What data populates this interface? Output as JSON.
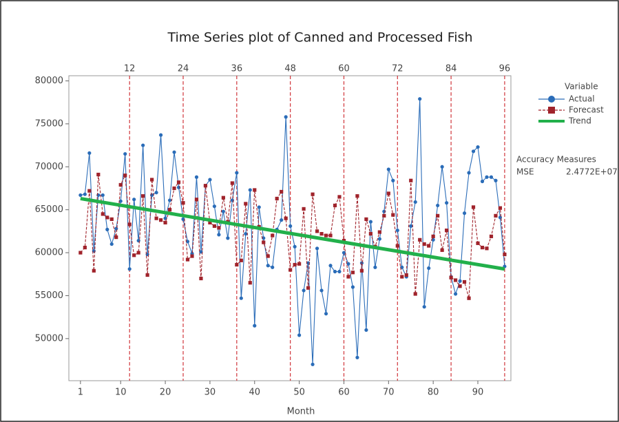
{
  "chart_data": {
    "type": "line",
    "title": "Time Series plot of Canned and Processed Fish",
    "x_label": "Month",
    "x": [
      1,
      2,
      3,
      4,
      5,
      6,
      7,
      8,
      9,
      10,
      11,
      12,
      13,
      14,
      15,
      16,
      17,
      18,
      19,
      20,
      21,
      22,
      23,
      24,
      25,
      26,
      27,
      28,
      29,
      30,
      31,
      32,
      33,
      34,
      35,
      36,
      37,
      38,
      39,
      40,
      41,
      42,
      43,
      44,
      45,
      46,
      47,
      48,
      49,
      50,
      51,
      52,
      53,
      54,
      55,
      56,
      57,
      58,
      59,
      60,
      61,
      62,
      63,
      64,
      65,
      66,
      67,
      68,
      69,
      70,
      71,
      72,
      73,
      74,
      75,
      76,
      77,
      78,
      79,
      80,
      81,
      82,
      83,
      84,
      85,
      86,
      87,
      88,
      89,
      90,
      91,
      92,
      93,
      94,
      95,
      96
    ],
    "series": [
      {
        "name": "Actual",
        "color": "#2a6cb8",
        "marker": "circle",
        "values": [
          66700,
          66800,
          71600,
          60200,
          66700,
          66700,
          62700,
          61000,
          62800,
          66000,
          71500,
          58100,
          66200,
          61400,
          72500,
          59800,
          66700,
          67000,
          73700,
          64000,
          66100,
          71700,
          67600,
          63900,
          61300,
          59900,
          68800,
          60100,
          67800,
          68500,
          65400,
          62100,
          64800,
          61700,
          66100,
          69300,
          54700,
          62200,
          67300,
          51500,
          65300,
          61700,
          58500,
          58300,
          62700,
          63800,
          75800,
          63100,
          60700,
          50400,
          55600,
          58800,
          47000,
          60500,
          55600,
          52900,
          58500,
          57800,
          57800,
          60000,
          58700,
          56000,
          47800,
          58800,
          51000,
          63600,
          58300,
          61600,
          64800,
          69700,
          68400,
          62600,
          58300,
          57200,
          63100,
          65900,
          77900,
          53700,
          58200,
          61500,
          65500,
          70000,
          65800,
          57200,
          55200,
          56700,
          64600,
          69300,
          71800,
          72300,
          68300,
          68800,
          68800,
          68400,
          64100,
          58400
        ]
      },
      {
        "name": "Forecast",
        "color": "#a0232b",
        "marker": "square",
        "dashed": true,
        "values": [
          60000,
          60600,
          67200,
          57900,
          69100,
          64500,
          64100,
          63900,
          61800,
          67900,
          69000,
          63300,
          59700,
          60000,
          66600,
          57400,
          68500,
          64000,
          63800,
          63500,
          65000,
          67500,
          68200,
          65800,
          59200,
          59600,
          66200,
          57000,
          67800,
          63500,
          63100,
          62900,
          66400,
          63600,
          68100,
          58600,
          59100,
          65700,
          56500,
          67300,
          63000,
          61200,
          59600,
          62000,
          66300,
          67100,
          64000,
          58000,
          58600,
          58700,
          65100,
          55900,
          66800,
          62500,
          62200,
          62000,
          62000,
          65500,
          66500,
          61400,
          57200,
          57700,
          66600,
          57900,
          63900,
          62200,
          60700,
          62400,
          64300,
          66900,
          64400,
          60800,
          57200,
          57400,
          68400,
          55200,
          61500,
          61000,
          60800,
          61900,
          64300,
          60300,
          62600,
          57100,
          56800,
          56100,
          56600,
          54700,
          65300,
          61100,
          60600,
          60500,
          61900,
          64300,
          65200,
          59800
        ]
      },
      {
        "name": "Trend",
        "color": "#22b04b",
        "x": [
          1,
          96
        ],
        "values": [
          66300,
          58100
        ]
      }
    ],
    "legend_title": "Variable",
    "accuracy": {
      "title": "Accuracy Measures",
      "label": "MSE",
      "value": "2.4772E+07"
    },
    "vlines": [
      12,
      24,
      36,
      48,
      60,
      72,
      84,
      96
    ],
    "vline_color": "#d0343a",
    "xlim": [
      -1.6,
      97.4
    ],
    "xticks": [
      1,
      10,
      20,
      30,
      40,
      50,
      60,
      70,
      80,
      90
    ],
    "ylim": [
      45100,
      80600
    ],
    "yticks": [
      50000,
      55000,
      60000,
      65000,
      70000,
      75000,
      80000
    ],
    "grid": false
  }
}
